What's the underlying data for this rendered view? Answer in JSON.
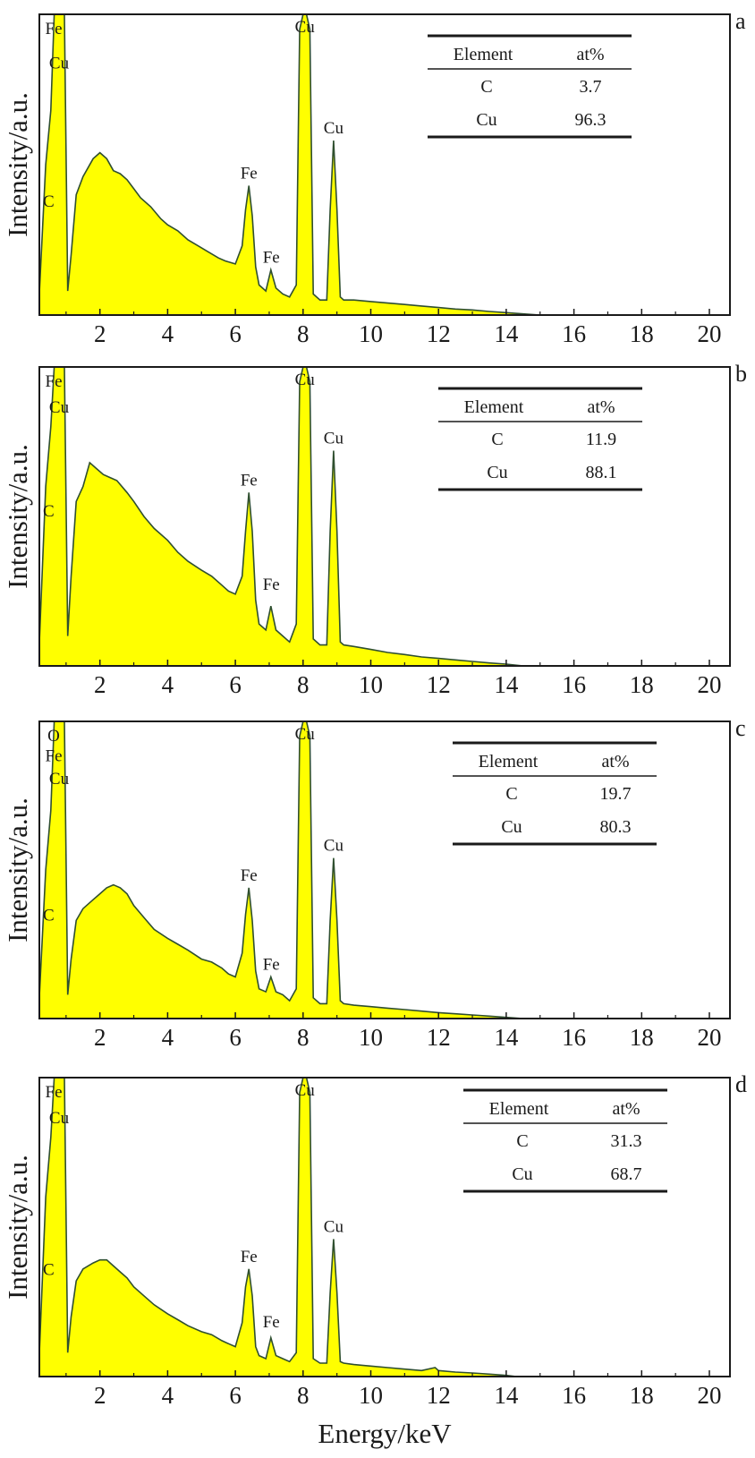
{
  "chart_data": [
    {
      "type": "area",
      "panel_label": "a",
      "ylabel": "Intensity/a.u.",
      "xlim": [
        0,
        20
      ],
      "xticks": [
        2,
        4,
        6,
        8,
        10,
        12,
        14,
        16,
        18,
        20
      ],
      "color": "#ffff00",
      "line_color": "#2f4f2f",
      "peaks": [
        {
          "label": "Fe",
          "x": 0.7,
          "y": 1.0
        },
        {
          "label": "Cu",
          "x": 0.93,
          "y": 0.88
        },
        {
          "label": "C",
          "x": 0.28,
          "y": 0.36
        },
        {
          "label": "Fe",
          "x": 6.4,
          "y": 0.43
        },
        {
          "label": "Fe",
          "x": 7.06,
          "y": 0.15
        },
        {
          "label": "Cu",
          "x": 8.05,
          "y": 1.0
        },
        {
          "label": "Cu",
          "x": 8.9,
          "y": 0.58
        }
      ],
      "series": [
        {
          "x": [
            0.2,
            0.4,
            0.55,
            0.65,
            0.75,
            0.85,
            0.95,
            1.05,
            1.15,
            1.3,
            1.5,
            1.8,
            2.0,
            2.2,
            2.4,
            2.6,
            2.8,
            3.0,
            3.2,
            3.5,
            3.8,
            4.0,
            4.3,
            4.6,
            4.9,
            5.2,
            5.5,
            5.7,
            6.0,
            6.2,
            6.3,
            6.4,
            6.5,
            6.6,
            6.7,
            6.9,
            7.05,
            7.2,
            7.4,
            7.6,
            7.8,
            7.9,
            8.0,
            8.1,
            8.2,
            8.3,
            8.5,
            8.7,
            8.8,
            8.9,
            9.0,
            9.1,
            9.2,
            9.5,
            10.0,
            10.5,
            11.0,
            11.5,
            12.0,
            12.5,
            13.0,
            13.5,
            14.0,
            14.5,
            15.0
          ],
          "y": [
            0.05,
            0.5,
            0.68,
            1.0,
            1.0,
            1.0,
            1.0,
            0.08,
            0.2,
            0.4,
            0.46,
            0.52,
            0.54,
            0.52,
            0.48,
            0.47,
            0.45,
            0.42,
            0.39,
            0.36,
            0.32,
            0.3,
            0.28,
            0.25,
            0.23,
            0.21,
            0.19,
            0.18,
            0.17,
            0.23,
            0.35,
            0.43,
            0.33,
            0.16,
            0.1,
            0.08,
            0.15,
            0.09,
            0.07,
            0.06,
            0.1,
            0.95,
            1.0,
            1.0,
            0.95,
            0.07,
            0.05,
            0.05,
            0.35,
            0.58,
            0.35,
            0.06,
            0.05,
            0.05,
            0.045,
            0.04,
            0.035,
            0.03,
            0.025,
            0.02,
            0.017,
            0.012,
            0.008,
            0.004,
            0.0
          ]
        }
      ],
      "table": {
        "headers": [
          "Element",
          "at%"
        ],
        "rows": [
          [
            "C",
            "3.7"
          ],
          [
            "Cu",
            "96.3"
          ]
        ]
      }
    },
    {
      "type": "area",
      "panel_label": "b",
      "ylabel": "Intensity/a.u.",
      "xlim": [
        0,
        20
      ],
      "xticks": [
        2,
        4,
        6,
        8,
        10,
        12,
        14,
        16,
        18,
        20
      ],
      "color": "#ffff00",
      "line_color": "#2f4f2f",
      "peaks": [
        {
          "label": "Fe",
          "x": 0.7,
          "y": 1.0
        },
        {
          "label": "Cu",
          "x": 0.93,
          "y": 0.91
        },
        {
          "label": "C",
          "x": 0.28,
          "y": 0.5
        },
        {
          "label": "Fe",
          "x": 6.4,
          "y": 0.58
        },
        {
          "label": "Fe",
          "x": 7.06,
          "y": 0.23
        },
        {
          "label": "Cu",
          "x": 8.05,
          "y": 1.0
        },
        {
          "label": "Cu",
          "x": 8.9,
          "y": 0.72
        }
      ],
      "series": [
        {
          "x": [
            0.2,
            0.4,
            0.55,
            0.65,
            0.75,
            0.85,
            0.95,
            1.05,
            1.15,
            1.3,
            1.5,
            1.7,
            1.9,
            2.1,
            2.3,
            2.5,
            2.8,
            3.0,
            3.3,
            3.6,
            4.0,
            4.3,
            4.6,
            5.0,
            5.3,
            5.6,
            5.8,
            6.0,
            6.2,
            6.3,
            6.4,
            6.5,
            6.6,
            6.7,
            6.9,
            7.05,
            7.2,
            7.4,
            7.6,
            7.8,
            7.9,
            8.0,
            8.1,
            8.2,
            8.3,
            8.5,
            8.7,
            8.8,
            8.9,
            9.0,
            9.1,
            9.2,
            9.5,
            10.0,
            10.5,
            11.0,
            11.5,
            12.0,
            12.5,
            13.0,
            13.5,
            14.0,
            14.5
          ],
          "y": [
            0.05,
            0.6,
            0.8,
            1.0,
            1.0,
            1.0,
            1.0,
            0.1,
            0.3,
            0.55,
            0.6,
            0.68,
            0.66,
            0.64,
            0.63,
            0.62,
            0.58,
            0.55,
            0.5,
            0.46,
            0.42,
            0.38,
            0.35,
            0.32,
            0.3,
            0.27,
            0.25,
            0.24,
            0.3,
            0.45,
            0.58,
            0.45,
            0.22,
            0.14,
            0.12,
            0.2,
            0.12,
            0.1,
            0.08,
            0.14,
            0.95,
            1.0,
            1.0,
            0.95,
            0.09,
            0.07,
            0.07,
            0.45,
            0.72,
            0.45,
            0.08,
            0.07,
            0.065,
            0.055,
            0.045,
            0.038,
            0.03,
            0.025,
            0.02,
            0.015,
            0.01,
            0.006,
            0.0
          ]
        }
      ],
      "table": {
        "headers": [
          "Element",
          "at%"
        ],
        "rows": [
          [
            "C",
            "11.9"
          ],
          [
            "Cu",
            "88.1"
          ]
        ]
      }
    },
    {
      "type": "area",
      "panel_label": "c",
      "ylabel": "Intensity/a.u.",
      "xlim": [
        0,
        20
      ],
      "xticks": [
        2,
        4,
        6,
        8,
        10,
        12,
        14,
        16,
        18,
        20
      ],
      "color": "#ffff00",
      "line_color": "#2f4f2f",
      "peaks": [
        {
          "label": "O",
          "x": 0.52,
          "y": 1.0
        },
        {
          "label": "Fe",
          "x": 0.7,
          "y": 0.93
        },
        {
          "label": "Cu",
          "x": 0.93,
          "y": 0.85
        },
        {
          "label": "C",
          "x": 0.28,
          "y": 0.33
        },
        {
          "label": "Fe",
          "x": 6.4,
          "y": 0.44
        },
        {
          "label": "Fe",
          "x": 7.06,
          "y": 0.14
        },
        {
          "label": "Cu",
          "x": 8.05,
          "y": 1.0
        },
        {
          "label": "Cu",
          "x": 8.9,
          "y": 0.54
        }
      ],
      "series": [
        {
          "x": [
            0.2,
            0.4,
            0.55,
            0.65,
            0.75,
            0.85,
            0.95,
            1.05,
            1.15,
            1.3,
            1.5,
            1.8,
            2.0,
            2.2,
            2.4,
            2.6,
            2.8,
            3.0,
            3.3,
            3.6,
            4.0,
            4.3,
            4.6,
            5.0,
            5.3,
            5.6,
            5.8,
            6.0,
            6.2,
            6.3,
            6.4,
            6.5,
            6.6,
            6.7,
            6.9,
            7.05,
            7.2,
            7.4,
            7.6,
            7.8,
            7.9,
            8.0,
            8.1,
            8.2,
            8.3,
            8.5,
            8.7,
            8.8,
            8.9,
            9.0,
            9.1,
            9.2,
            9.5,
            10.0,
            10.5,
            11.0,
            11.5,
            12.0,
            12.5,
            13.0,
            13.5,
            14.0,
            14.5
          ],
          "y": [
            0.05,
            0.5,
            0.7,
            1.0,
            1.0,
            1.0,
            1.0,
            0.08,
            0.2,
            0.33,
            0.37,
            0.4,
            0.42,
            0.44,
            0.45,
            0.44,
            0.42,
            0.38,
            0.34,
            0.3,
            0.27,
            0.25,
            0.23,
            0.2,
            0.19,
            0.17,
            0.15,
            0.14,
            0.22,
            0.35,
            0.44,
            0.33,
            0.16,
            0.1,
            0.09,
            0.14,
            0.09,
            0.08,
            0.06,
            0.1,
            0.95,
            1.0,
            1.0,
            0.95,
            0.07,
            0.05,
            0.05,
            0.33,
            0.54,
            0.33,
            0.06,
            0.05,
            0.045,
            0.04,
            0.035,
            0.03,
            0.025,
            0.02,
            0.016,
            0.012,
            0.008,
            0.004,
            0.0
          ]
        }
      ],
      "table": {
        "headers": [
          "Element",
          "at%"
        ],
        "rows": [
          [
            "C",
            "19.7"
          ],
          [
            "Cu",
            "80.3"
          ]
        ]
      }
    },
    {
      "type": "area",
      "panel_label": "d",
      "ylabel": "Intensity/a.u.",
      "xlabel": "Energy/keV",
      "xlim": [
        0,
        20
      ],
      "xticks": [
        2,
        4,
        6,
        8,
        10,
        12,
        14,
        16,
        18,
        20
      ],
      "color": "#ffff00",
      "line_color": "#2f4f2f",
      "peaks": [
        {
          "label": "Fe",
          "x": 0.7,
          "y": 1.0
        },
        {
          "label": "Cu",
          "x": 0.93,
          "y": 0.91
        },
        {
          "label": "C",
          "x": 0.28,
          "y": 0.34
        },
        {
          "label": "Fe",
          "x": 6.4,
          "y": 0.36
        },
        {
          "label": "Fe",
          "x": 7.06,
          "y": 0.14
        },
        {
          "label": "Cu",
          "x": 8.05,
          "y": 1.0
        },
        {
          "label": "Cu",
          "x": 8.9,
          "y": 0.46
        }
      ],
      "series": [
        {
          "x": [
            0.2,
            0.4,
            0.55,
            0.65,
            0.75,
            0.85,
            0.95,
            1.05,
            1.15,
            1.3,
            1.5,
            1.8,
            2.0,
            2.2,
            2.4,
            2.6,
            2.8,
            3.0,
            3.3,
            3.6,
            4.0,
            4.3,
            4.6,
            5.0,
            5.3,
            5.6,
            5.8,
            6.0,
            6.2,
            6.3,
            6.4,
            6.5,
            6.6,
            6.7,
            6.9,
            7.05,
            7.2,
            7.4,
            7.6,
            7.8,
            7.9,
            8.0,
            8.1,
            8.2,
            8.3,
            8.5,
            8.7,
            8.8,
            8.9,
            9.0,
            9.1,
            9.2,
            9.5,
            10.0,
            10.5,
            11.0,
            11.5,
            11.9,
            12.0,
            12.5,
            13.0,
            13.5,
            14.0,
            14.3
          ],
          "y": [
            0.05,
            0.6,
            0.8,
            1.0,
            1.0,
            1.0,
            1.0,
            0.08,
            0.2,
            0.32,
            0.36,
            0.38,
            0.39,
            0.39,
            0.37,
            0.35,
            0.33,
            0.3,
            0.27,
            0.24,
            0.21,
            0.19,
            0.17,
            0.15,
            0.14,
            0.12,
            0.11,
            0.1,
            0.18,
            0.3,
            0.36,
            0.27,
            0.1,
            0.07,
            0.06,
            0.13,
            0.07,
            0.06,
            0.05,
            0.08,
            0.95,
            1.0,
            1.0,
            0.95,
            0.06,
            0.045,
            0.045,
            0.28,
            0.46,
            0.28,
            0.05,
            0.045,
            0.04,
            0.035,
            0.03,
            0.025,
            0.02,
            0.03,
            0.02,
            0.015,
            0.012,
            0.008,
            0.004,
            0.0
          ]
        }
      ],
      "table": {
        "headers": [
          "Element",
          "at%"
        ],
        "rows": [
          [
            "C",
            "31.3"
          ],
          [
            "Cu",
            "68.7"
          ]
        ]
      }
    }
  ]
}
